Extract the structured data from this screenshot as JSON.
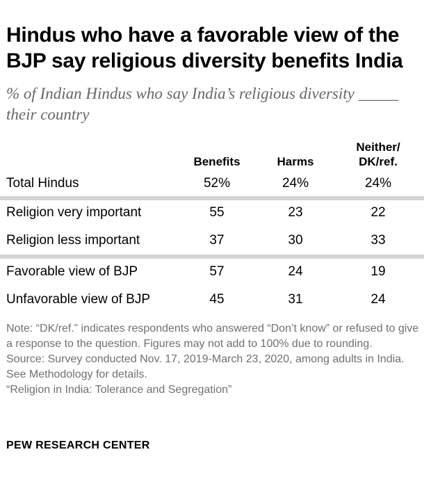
{
  "chart_data": {
    "type": "table",
    "title": "Hindus who have a favorable view of the BJP say religious diversity benefits India",
    "subtitle": "% of Indian Hindus who say India’s religious diversity _____ their country",
    "columns": [
      "Benefits",
      "Harms",
      "Neither/\nDK/ref."
    ],
    "rows": [
      {
        "label": "Total Hindus",
        "values": [
          "52%",
          "24%",
          "24%"
        ]
      },
      {
        "label": "Religion very important",
        "values": [
          "55",
          "23",
          "22"
        ]
      },
      {
        "label": "Religion less important",
        "values": [
          "37",
          "30",
          "33"
        ]
      },
      {
        "label": "Favorable view of BJP",
        "values": [
          "57",
          "24",
          "19"
        ]
      },
      {
        "label": "Unfavorable view of BJP",
        "values": [
          "45",
          "31",
          "24"
        ]
      }
    ]
  },
  "notes": {
    "note": "Note: “DK/ref.” indicates respondents who answered “Don’t know” or refused to give a response to the question. Figures may not add to 100% due to rounding.",
    "source": "Source: Survey conducted Nov. 17, 2019-March 23, 2020, among adults in India. See Methodology for details.",
    "report": "“Religion in India: Tolerance and Segregation”"
  },
  "brand": "PEW RESEARCH CENTER",
  "colors": {
    "separator": "#d4d4d4",
    "subtitle": "#666666",
    "note": "#707070"
  }
}
